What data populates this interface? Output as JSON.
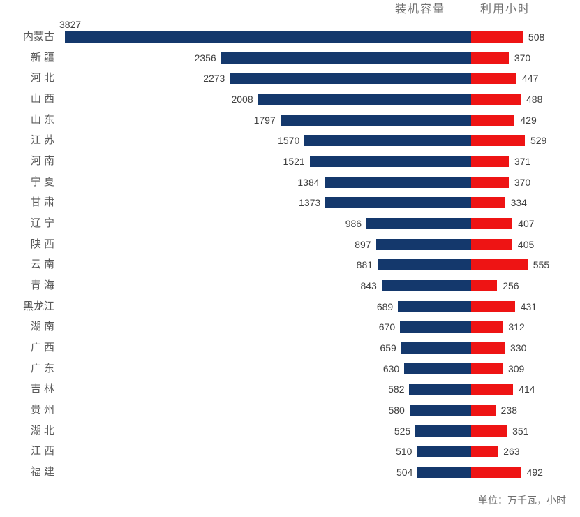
{
  "chart_data": {
    "type": "bar",
    "variant": "diverging-horizontal",
    "title": "",
    "categories": [
      "内蒙古",
      "新 疆",
      "河 北",
      "山 西",
      "山 东",
      "江 苏",
      "河 南",
      "宁 夏",
      "甘 肃",
      "辽 宁",
      "陕 西",
      "云 南",
      "青 海",
      "黑龙江",
      "湖 南",
      "广 西",
      "广 东",
      "吉 林",
      "贵 州",
      "湖 北",
      "江 西",
      "福 建"
    ],
    "series": [
      {
        "name": "装机容量",
        "color": "#14386c",
        "values": [
          3827,
          2356,
          2273,
          2008,
          1797,
          1570,
          1521,
          1384,
          1373,
          986,
          897,
          881,
          843,
          689,
          670,
          659,
          630,
          582,
          580,
          525,
          510,
          504
        ]
      },
      {
        "name": "利用小时",
        "color": "#ee1414",
        "values": [
          508,
          370,
          447,
          488,
          429,
          529,
          371,
          370,
          334,
          407,
          405,
          555,
          256,
          431,
          312,
          330,
          309,
          414,
          238,
          351,
          263,
          492
        ]
      }
    ],
    "legend_position": "top-right",
    "grid": false,
    "axis_labels_shown": false,
    "unit_note": "单位：万千瓦，小时"
  },
  "legend": {
    "capacity_label": "装机容量",
    "hours_label": "利用小时"
  },
  "footer": {
    "unit_note": "单位：万千瓦，小时"
  },
  "colors": {
    "capacity_bar": "#14386c",
    "hours_bar": "#ee1414",
    "category_text": "#595959",
    "value_text": "#3f3f3f",
    "legend_text": "#6e6e6e"
  }
}
